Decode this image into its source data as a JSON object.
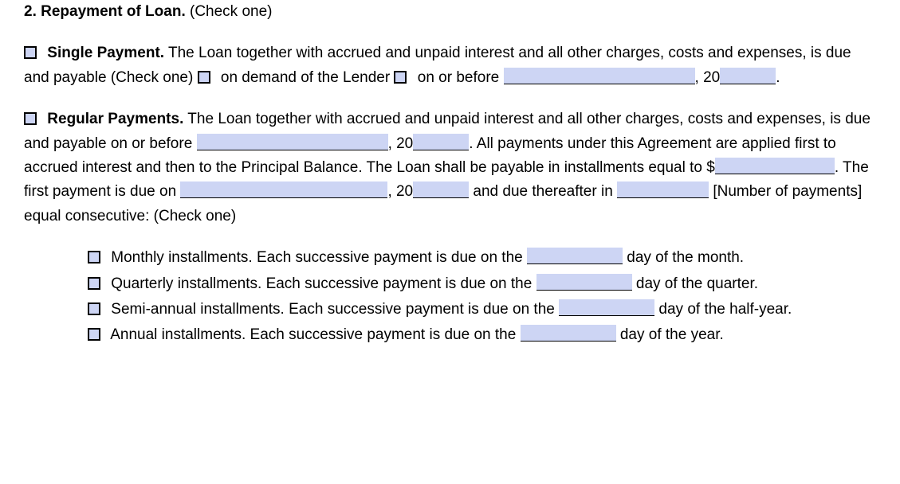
{
  "colors": {
    "fill_bg": "#cdd5f4",
    "text": "#000000",
    "page_bg": "#ffffff"
  },
  "section": {
    "number": "2.",
    "title": "Repayment of Loan.",
    "instruction": "(Check one)"
  },
  "single": {
    "label": "Single Payment.",
    "body1": " The Loan together with accrued and unpaid interest and all other charges, costs and expenses, is due and payable (Check one) ",
    "opt_demand": " on demand of the Lender ",
    "opt_onorbefore": " on or before ",
    "comma": ", 20",
    "period": "."
  },
  "regular": {
    "label": "Regular Payments.",
    "body1": " The Loan together with accrued and unpaid interest and all other charges, costs and expenses, is due and payable on or before ",
    "mid1": ", 20",
    "mid2": ". All payments under this Agreement are applied first to accrued interest and then to the Principal Balance. The Loan shall be payable in installments equal to $",
    "mid3": ". The first payment is due on ",
    "mid4": ", 20",
    "mid5": " and due thereafter in ",
    "mid6": " [Number of payments] equal consecutive: (Check one)"
  },
  "installments": {
    "monthly": {
      "pre": " Monthly installments. Each successive payment is due on the ",
      "post": " day of the month."
    },
    "quarterly": {
      "pre": " Quarterly installments. Each successive payment is due on the ",
      "post": " day of the quarter."
    },
    "semiannual": {
      "pre": " Semi-annual installments. Each successive payment is due on the ",
      "post": " day of the half-year."
    },
    "annual": {
      "pre": " Annual installments. Each successive payment is due on the ",
      "post": " day of the year."
    }
  },
  "widths": {
    "long": 240,
    "year": 70,
    "med": 150,
    "longer": 260,
    "numpay": 115,
    "day": 120
  }
}
